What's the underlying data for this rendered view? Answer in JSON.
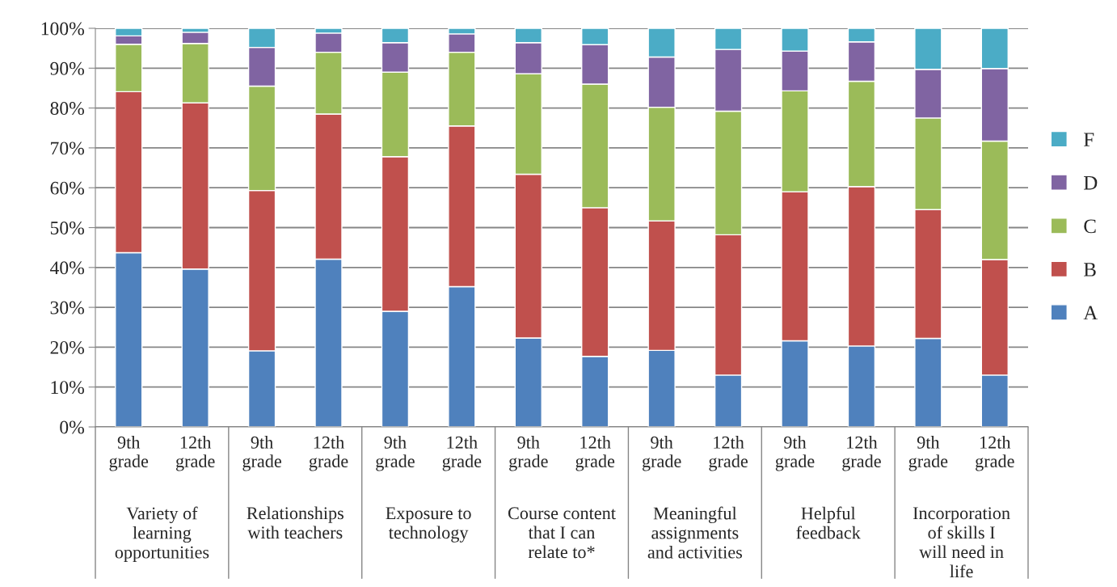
{
  "chart_data": {
    "type": "bar",
    "stacked": true,
    "categories": [
      "9th grade",
      "12th grade",
      "9th grade",
      "12th grade",
      "9th grade",
      "12th grade",
      "9th grade",
      "12th grade",
      "9th grade",
      "12th grade",
      "9th grade",
      "12th grade",
      "9th grade",
      "12th grade"
    ],
    "annotations": [
      "Variety of learning opportunities",
      "Relationships with teachers",
      "Exposure to technology",
      "Course content that I can relate to*",
      "Meaningful assignments and activities",
      "Helpful feedback",
      "Incorporation of skills I will need in life"
    ],
    "series": [
      {
        "name": "A",
        "color": "#4f81bd",
        "values": [
          43.7,
          39.6,
          19.1,
          42.1,
          29.0,
          35.2,
          22.3,
          17.7,
          19.2,
          13.0,
          21.6,
          20.3,
          22.2,
          13.0
        ]
      },
      {
        "name": "B",
        "color": "#c0504d",
        "values": [
          40.4,
          41.7,
          40.2,
          36.4,
          38.8,
          40.3,
          41.1,
          37.3,
          32.5,
          35.2,
          37.4,
          40.0,
          32.3,
          29.0
        ]
      },
      {
        "name": "C",
        "color": "#9bbb59",
        "values": [
          11.9,
          14.9,
          26.2,
          15.5,
          21.2,
          18.5,
          25.2,
          31.0,
          28.5,
          31.0,
          25.3,
          26.4,
          23.0,
          29.7
        ]
      },
      {
        "name": "D",
        "color": "#8064a2",
        "values": [
          2.1,
          2.8,
          9.7,
          4.8,
          7.4,
          4.6,
          7.8,
          9.9,
          12.6,
          15.5,
          10.0,
          9.9,
          12.2,
          18.2
        ]
      },
      {
        "name": "F",
        "color": "#4bacc6",
        "values": [
          1.9,
          1.0,
          4.8,
          1.2,
          3.6,
          1.4,
          3.6,
          4.1,
          7.2,
          5.3,
          5.7,
          3.4,
          10.3,
          10.1
        ]
      }
    ],
    "ylim": [
      0,
      100
    ],
    "yticks": [
      {
        "value": 0,
        "label": "0%"
      },
      {
        "value": 10,
        "label": "10%"
      },
      {
        "value": 20,
        "label": "20%"
      },
      {
        "value": 30,
        "label": "30%"
      },
      {
        "value": 40,
        "label": "40%"
      },
      {
        "value": 50,
        "label": "50%"
      },
      {
        "value": 60,
        "label": "60%"
      },
      {
        "value": 70,
        "label": "70%"
      },
      {
        "value": 80,
        "label": "80%"
      },
      {
        "value": 90,
        "label": "90%"
      },
      {
        "value": 100,
        "label": "100%"
      }
    ],
    "grid": "y",
    "legend": "right"
  }
}
